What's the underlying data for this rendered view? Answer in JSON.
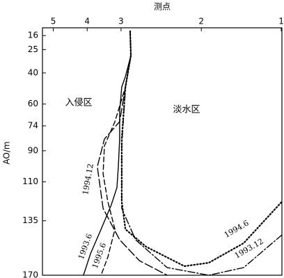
{
  "chart_data": {
    "type": "line",
    "x_label": "测点",
    "y_label": "AO/m",
    "xlim": [
      -0.32,
      6.75
    ],
    "ylim": [
      11,
      170
    ],
    "y_inverted": true,
    "xticks": [
      {
        "value": 0,
        "label": "5"
      },
      {
        "value": 1,
        "label": "4"
      },
      {
        "value": 2,
        "label": "3"
      },
      {
        "value": 4.37,
        "label": "2"
      },
      {
        "value": 6.73,
        "label": "1"
      }
    ],
    "yticks": [
      16,
      25,
      40,
      60,
      74,
      90,
      110,
      135,
      170
    ],
    "annotations": [
      "入侵区",
      "淡水区"
    ],
    "series": [
      {
        "name": "1993.6",
        "color": "#000000",
        "linestyle": "solid",
        "x": [
          2.27,
          2.29,
          2.13,
          2.02,
          1.96,
          1.96,
          1.92,
          1.88,
          1.71,
          1.41,
          1.1,
          0.89
        ],
        "values": [
          13.2,
          28.9,
          42.3,
          49.0,
          64.6,
          82.5,
          100.3,
          113.7,
          124.9,
          140.5,
          156.1,
          170
        ]
      },
      {
        "name": "1995.6",
        "color": "#000000",
        "linestyle": "dashed",
        "x": [
          2.27,
          2.29,
          2.13,
          1.82,
          1.51,
          1.47,
          1.61,
          1.82,
          1.61,
          1.41
        ],
        "values": [
          13.2,
          28.9,
          49.0,
          71.3,
          86.9,
          104.8,
          122.7,
          140.5,
          158.4,
          170
        ]
      },
      {
        "name": "1994.12",
        "color": "#000000",
        "linestyle": "longdash",
        "x": [
          2.27,
          2.29,
          2.13,
          1.96,
          1.51,
          1.3,
          1.47,
          1.96,
          2.54,
          3.36
        ],
        "values": [
          13.2,
          28.9,
          49.0,
          71.3,
          82.5,
          100.3,
          127.1,
          147.2,
          160.6,
          170
        ]
      },
      {
        "name": "1994.6",
        "color": "#000000",
        "linestyle": "dotted",
        "x": [
          2.27,
          2.29,
          2.13,
          2.02,
          2.02,
          2.13,
          2.74,
          3.87,
          4.59,
          5.62,
          6.75
        ],
        "values": [
          13.2,
          28.9,
          49.0,
          82.5,
          122.7,
          140.5,
          151.7,
          164.2,
          162.0,
          149.4,
          122.7
        ]
      },
      {
        "name": "1993.12",
        "color": "#000000",
        "linestyle": "dashdot",
        "x": [
          2.27,
          2.29,
          2.13,
          2.02,
          2.02,
          2.43,
          3.36,
          4.59,
          5.62,
          6.75
        ],
        "values": [
          13.2,
          28.9,
          49.0,
          86.9,
          127.1,
          147.2,
          165.1,
          170,
          165.1,
          144.1
        ]
      }
    ]
  }
}
